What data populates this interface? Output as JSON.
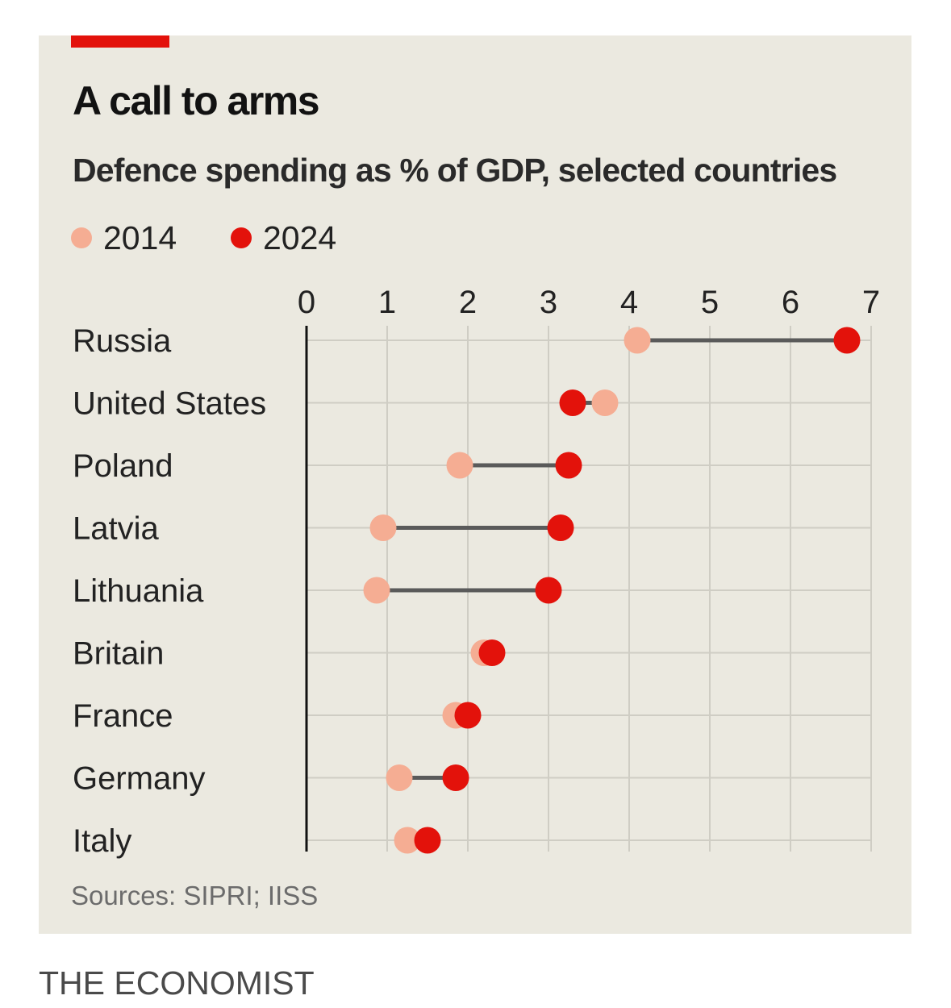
{
  "chart_data": {
    "type": "dumbbell",
    "title": "A call to arms",
    "subtitle": "Defence spending as % of GDP, selected countries",
    "xlim": [
      0,
      7
    ],
    "x_ticks": [
      0,
      1,
      2,
      3,
      4,
      5,
      6,
      7
    ],
    "grid": true,
    "legend_position": "top-left",
    "series": [
      {
        "name": "2014",
        "color": "#f5ad93"
      },
      {
        "name": "2024",
        "color": "#e3120b"
      }
    ],
    "categories": [
      "Russia",
      "United States",
      "Poland",
      "Latvia",
      "Lithuania",
      "Britain",
      "France",
      "Germany",
      "Italy"
    ],
    "values_2014": [
      4.1,
      3.7,
      1.9,
      0.95,
      0.87,
      2.2,
      1.85,
      1.15,
      1.25
    ],
    "values_2024": [
      6.7,
      3.3,
      3.25,
      3.15,
      3.0,
      2.3,
      2.0,
      1.85,
      1.5
    ],
    "source": "Sources: SIPRI; IISS"
  },
  "footer": "THE ECONOMIST",
  "colors": {
    "background": "#ebe9e0",
    "accent": "#e3120b",
    "light": "#f5ad93",
    "connector": "#5a5a5a",
    "grid": "#cfcdc4"
  }
}
